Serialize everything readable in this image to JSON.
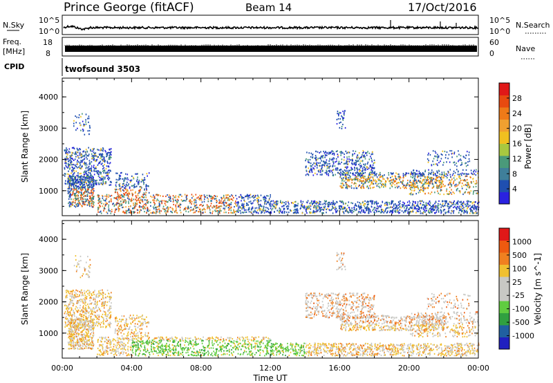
{
  "header": {
    "station": "Prince George (fitACF)",
    "beam": "Beam 14",
    "date": "17/Oct/2016"
  },
  "side_labels": {
    "nsky": "N.Sky",
    "freq_line1": "Freq.",
    "freq_line2": "[MHz]",
    "cpid": "CPID",
    "nsearch": "N.Search",
    "nave": "Nave"
  },
  "strip_ticks": {
    "nsky_left": [
      "10^5",
      "10^0"
    ],
    "nsky_right": [
      "10^5",
      "10^0"
    ],
    "freq_left": [
      "18",
      "8"
    ],
    "nave_right": [
      "60",
      "0"
    ]
  },
  "cpid_text": "twofsound 3503",
  "colors": {
    "power": [
      "#2a22e0",
      "#1f4fb0",
      "#3f7f9a",
      "#4a9a7a",
      "#a8c840",
      "#f0c020",
      "#f0a030",
      "#ee7a18",
      "#e84a10",
      "#e01818"
    ],
    "velocity": [
      "#2020c0",
      "#2060a0",
      "#30a040",
      "#60cc40",
      "#c8c8c4",
      "#c8c8c4",
      "#f0c030",
      "#f08020",
      "#ee5a10",
      "#e01818"
    ]
  },
  "chart_data": [
    {
      "type": "heatmap",
      "name": "power",
      "xlabel": "",
      "ylabel": "Slant Range [km]",
      "xlim": [
        "00:00",
        "00:00"
      ],
      "ylim": [
        200,
        4600
      ],
      "yticks": [
        "1000",
        "2000",
        "3000",
        "4000"
      ],
      "colorbar": {
        "label": "Power [dB]",
        "ticks": [
          "4",
          "8",
          "12",
          "16",
          "20",
          "24",
          "28"
        ]
      },
      "grid": false
    },
    {
      "type": "heatmap",
      "name": "velocity",
      "xlabel": "Time UT",
      "ylabel": "Slant Range [km]",
      "xlim": [
        "00:00",
        "00:00"
      ],
      "ylim": [
        200,
        4600
      ],
      "xticks": [
        "00:00",
        "04:00",
        "08:00",
        "12:00",
        "16:00",
        "20:00",
        "00:00"
      ],
      "yticks": [
        "1000",
        "2000",
        "3000",
        "4000"
      ],
      "colorbar": {
        "label": "Velocity [m s^-1]",
        "ticks": [
          "1000",
          "500",
          "100",
          "25",
          "-25",
          "-100",
          "-500",
          "-1000"
        ]
      },
      "grid": false
    }
  ]
}
